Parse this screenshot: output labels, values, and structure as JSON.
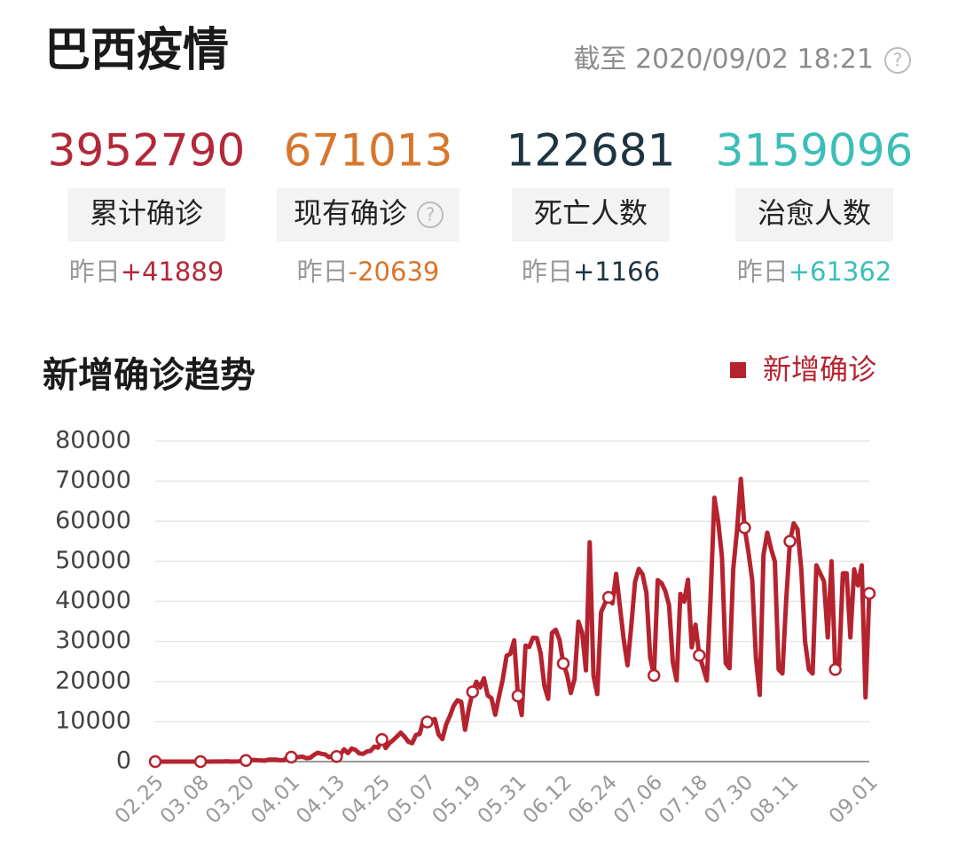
{
  "header": {
    "title": "巴西疫情",
    "as_of": "截至 2020/09/02 18:21"
  },
  "stats": [
    {
      "value": 3952790,
      "label": "累计确诊",
      "yesterday": "昨日",
      "delta": "+41889",
      "color": "#b3283a"
    },
    {
      "value": 671013,
      "label": "现有确诊",
      "yesterday": "昨日",
      "delta": "-20639",
      "color": "#d7762c"
    },
    {
      "value": 122681,
      "label": "死亡人数",
      "yesterday": "昨日",
      "delta": "+1166",
      "color": "#1e3441"
    },
    {
      "value": 3159096,
      "label": "治愈人数",
      "yesterday": "昨日",
      "delta": "+61362",
      "color": "#3cbeb8"
    }
  ],
  "chart_data": {
    "type": "line",
    "title": "新增确诊趋势",
    "legend": "top-right",
    "grid": true,
    "ylim": [
      0,
      80000
    ],
    "yticks": [
      0,
      10000,
      20000,
      30000,
      40000,
      50000,
      60000,
      70000,
      80000
    ],
    "categories": [
      "02.25",
      null,
      null,
      null,
      null,
      null,
      null,
      null,
      null,
      null,
      null,
      null,
      "03.08",
      null,
      null,
      null,
      null,
      null,
      null,
      null,
      null,
      null,
      null,
      null,
      "03.20",
      null,
      null,
      null,
      null,
      null,
      null,
      null,
      null,
      null,
      null,
      null,
      "04.01",
      null,
      null,
      null,
      null,
      null,
      null,
      null,
      null,
      null,
      null,
      null,
      "04.13",
      null,
      null,
      null,
      null,
      null,
      null,
      null,
      null,
      null,
      null,
      null,
      "04.25",
      null,
      null,
      null,
      null,
      null,
      null,
      null,
      null,
      null,
      null,
      null,
      "05.07",
      null,
      null,
      null,
      null,
      null,
      null,
      null,
      null,
      null,
      null,
      null,
      "05.19",
      null,
      null,
      null,
      null,
      null,
      null,
      null,
      null,
      null,
      null,
      null,
      "05.31",
      null,
      null,
      null,
      null,
      null,
      null,
      null,
      null,
      null,
      null,
      null,
      "06.12",
      null,
      null,
      null,
      null,
      null,
      null,
      null,
      null,
      null,
      null,
      null,
      "06.24",
      null,
      null,
      null,
      null,
      null,
      null,
      null,
      null,
      null,
      null,
      null,
      "07.06",
      null,
      null,
      null,
      null,
      null,
      null,
      null,
      null,
      null,
      null,
      null,
      "07.18",
      null,
      null,
      null,
      null,
      null,
      null,
      null,
      null,
      null,
      null,
      null,
      "07.30",
      null,
      null,
      null,
      null,
      null,
      null,
      null,
      null,
      null,
      null,
      null,
      "08.11",
      null,
      null,
      null,
      null,
      null,
      null,
      null,
      null,
      null,
      null,
      null,
      null,
      null,
      null,
      null,
      null,
      null,
      null,
      null,
      null,
      "09.01"
    ],
    "series": [
      {
        "name": "新增确诊",
        "color": "#b5232f",
        "values": [
          0,
          0,
          0,
          0,
          0,
          0,
          0,
          0,
          2,
          0,
          5,
          0,
          0,
          5,
          0,
          9,
          18,
          25,
          21,
          77,
          0,
          34,
          57,
          137,
          283,
          224,
          418,
          345,
          310,
          232,
          482,
          502,
          487,
          352,
          323,
          1138,
          1119,
          1074,
          1146,
          1222,
          852,
          926,
          1661,
          2210,
          1930,
          1781,
          1089,
          1442,
          1261,
          1832,
          3058,
          2105,
          3257,
          2917,
          2055,
          1927,
          2498,
          2678,
          3735,
          3503,
          5514,
          3379,
          4613,
          5385,
          6276,
          7218,
          6209,
          4970,
          4588,
          6633,
          6935,
          10503,
          9888,
          10222,
          10611,
          6760,
          5632,
          9258,
          11385,
          13944,
          15305,
          14919,
          7938,
          13140,
          17408,
          19951,
          18508,
          20803,
          16508,
          15813,
          11687,
          16324,
          20599,
          26417,
          26928,
          30274,
          16409,
          11598,
          28936,
          28633,
          30925,
          30830,
          27075,
          18912,
          15654,
          32091,
          32913,
          30412,
          24500,
          21704,
          17110,
          20647,
          34918,
          32188,
          22765,
          54771,
          21432,
          16851,
          37278,
          39436,
          41000,
          39483,
          46860,
          38693,
          30476,
          24052,
          33846,
          44884,
          48105,
          46712,
          42223,
          26051,
          21500,
          45305,
          44571,
          42619,
          39023,
          24831,
          20286,
          41857,
          39924,
          45403,
          28532,
          34177,
          26500,
          23529,
          20257,
          41008,
          65860,
          59961,
          51147,
          24578,
          23284,
          48234,
          57837,
          70574,
          58389,
          52383,
          45392,
          25800,
          16641,
          51603,
          57152,
          53139,
          49970,
          23010,
          22000,
          40274,
          55000,
          59500,
          58000,
          48000,
          30000,
          23000,
          22000,
          49000,
          47000,
          45000,
          31000,
          50000,
          23000,
          24000,
          47000,
          47000,
          31000,
          48000,
          44000,
          49000,
          16000,
          42000
        ]
      }
    ]
  }
}
